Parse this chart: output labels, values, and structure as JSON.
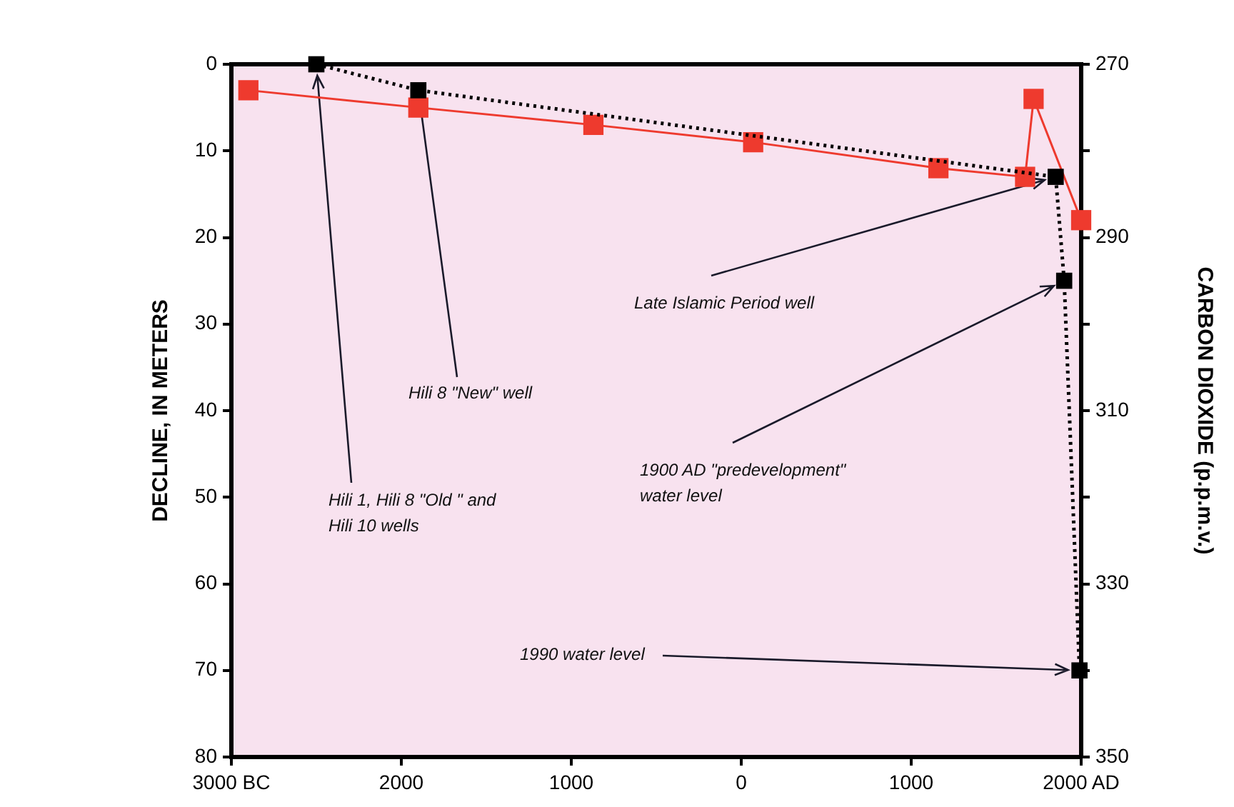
{
  "chart_data": {
    "type": "line",
    "ylabel": "DECLINE, IN METERS",
    "y2label": "CARBON DIOXIDE (p.p.m.v.)",
    "xlim": [
      -3000,
      2000
    ],
    "xticks": [
      {
        "value": -3000,
        "label": "3000 BC"
      },
      {
        "value": -2000,
        "label": "2000"
      },
      {
        "value": -1000,
        "label": "1000"
      },
      0,
      1000,
      {
        "value": 2000,
        "label": "2000 AD"
      }
    ],
    "ylim": [
      80,
      0
    ],
    "yticks": [
      0,
      10,
      20,
      30,
      40,
      50,
      60,
      70,
      80
    ],
    "y2lim": [
      350,
      270
    ],
    "y2ticks": [
      270,
      {
        "value": 280,
        "label": null
      },
      290,
      {
        "value": 300,
        "label": null
      },
      310,
      {
        "value": 320,
        "label": null
      },
      330,
      {
        "value": 340,
        "label": null
      },
      350
    ],
    "grid": false,
    "legend": false,
    "marker": "square",
    "series": [
      {
        "color": "#000000",
        "line_style": "dotted",
        "axis": "y",
        "x": [
          -2500,
          -1900,
          1850,
          1900,
          1990
        ],
        "values": [
          0,
          3,
          13,
          25,
          70
        ]
      },
      {
        "color": "#ee3a2e",
        "line_style": "solid",
        "axis": "y2",
        "x": [
          -2900,
          -1900,
          -870,
          70,
          1160,
          1670,
          1720,
          2000
        ],
        "values": [
          273,
          275,
          277,
          279,
          282,
          283,
          274,
          288
        ]
      }
    ],
    "annotations": [
      {
        "text": "Hili 1, Hili 8 \"Old \" and Hili 10 wells",
        "x": -2500,
        "y": 0
      },
      {
        "text": "Hili 8 \"New\" well",
        "x": -1900,
        "y": 3
      },
      {
        "text": "Late Islamic Period well",
        "x": 1850,
        "y": 13
      },
      {
        "text": "1900 AD \"predevelopment\" water level",
        "x": 1900,
        "y": 25
      },
      {
        "text": "1990 water level",
        "x": 1990,
        "y": 70
      }
    ]
  }
}
